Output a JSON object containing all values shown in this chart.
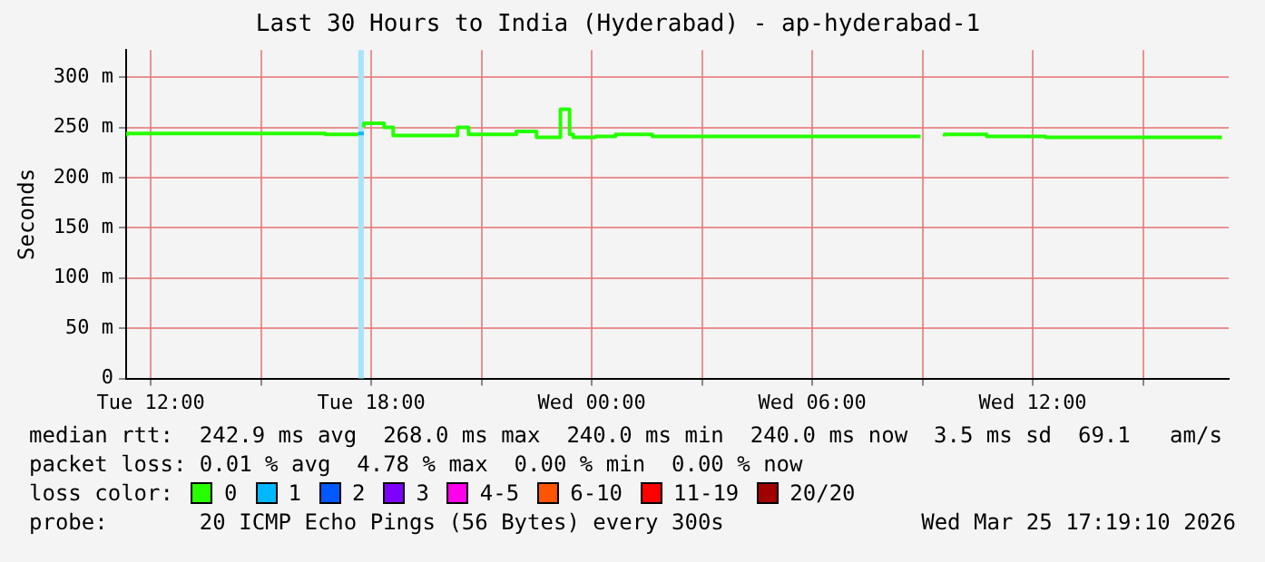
{
  "chart_data": {
    "type": "step",
    "title": "Last 30 Hours to India (Hyderabad) - ap-hyderabad-1",
    "ylabel": "Seconds",
    "xlim": [
      "2026-03-24T11:20",
      "2026-03-25T17:20"
    ],
    "xticks": [
      {
        "value": "2026-03-24T12:00",
        "label": "Tue 12:00"
      },
      {
        "value": "2026-03-24T15:00",
        "label": null
      },
      {
        "value": "2026-03-24T18:00",
        "label": "Tue 18:00"
      },
      {
        "value": "2026-03-24T21:00",
        "label": null
      },
      {
        "value": "2026-03-25T00:00",
        "label": "Wed 00:00"
      },
      {
        "value": "2026-03-25T03:00",
        "label": null
      },
      {
        "value": "2026-03-25T06:00",
        "label": "Wed 06:00"
      },
      {
        "value": "2026-03-25T09:00",
        "label": null
      },
      {
        "value": "2026-03-25T12:00",
        "label": "Wed 12:00"
      },
      {
        "value": "2026-03-25T15:00",
        "label": null
      }
    ],
    "ylim": [
      0,
      327
    ],
    "yticks": [
      0,
      {
        "value": 50,
        "label": "50 m"
      },
      {
        "value": 100,
        "label": "100 m"
      },
      {
        "value": 150,
        "label": "150 m"
      },
      {
        "value": 200,
        "label": "200 m"
      },
      {
        "value": 250,
        "label": "250 m"
      },
      {
        "value": 300,
        "label": "300 m"
      }
    ],
    "grid": true,
    "legend": "bottom",
    "legend_title": "loss color:",
    "series": [
      {
        "name": "0",
        "color": "#26ff00",
        "x": [
          "2026-03-24T11:21",
          "2026-03-24T16:45",
          "2026-03-24T17:00",
          "2026-03-24T17:39",
          "2026-03-24T17:42",
          "2026-03-24T17:48",
          "2026-03-24T18:21",
          "2026-03-24T18:36",
          "2026-03-24T20:21",
          "2026-03-24T20:39",
          "2026-03-24T21:57",
          "2026-03-24T22:30",
          "2026-03-24T23:09",
          "2026-03-24T23:24",
          "2026-03-24T23:30",
          "2026-03-25T00:06",
          "2026-03-25T00:39",
          "2026-03-25T01:39",
          "2026-03-25T03:15",
          "2026-03-25T08:57",
          "2026-03-25T09:00",
          "2026-03-25T09:36",
          "2026-03-25T10:45",
          "2026-03-25T12:21",
          "2026-03-25T14:18",
          "2026-03-25T17:09"
        ],
        "values": [
          241,
          244,
          243,
          243,
          null,
          250,
          254,
          250,
          242,
          250,
          243,
          246,
          240,
          268,
          243,
          240,
          241,
          243,
          241,
          241,
          null,
          241,
          243,
          241,
          240,
          240
        ]
      },
      {
        "name": "1",
        "color": "#00b8ff",
        "x": [
          "2026-03-24T17:39",
          "2026-03-24T17:48"
        ],
        "values": [
          244,
          244
        ]
      },
      {
        "name": "2",
        "color": "#0059ff"
      },
      {
        "name": "3",
        "color": "#7e00ff"
      },
      {
        "name": "4-5",
        "color": "#ff00ea"
      },
      {
        "name": "6-10",
        "color": "#ff5500"
      },
      {
        "name": "11-19",
        "color": "#ff0000"
      },
      {
        "name": "20/20",
        "color": "#a10000"
      }
    ],
    "bands": [
      {
        "axis": "x",
        "from": "2026-03-24T17:39",
        "to": "2026-03-24T17:48",
        "color": "#a8e4f8"
      }
    ],
    "annotations": [
      "median rtt:  242.9 ms avg  268.0 ms max  240.0 ms min  240.0 ms now  3.5 ms sd  69.1   am/s",
      "packet loss: 0.01 % avg  4.78 % max  0.00 % min  0.00 % now",
      "probe:       20 ICMP Echo Pings (56 Bytes) every 300s",
      "Wed Mar 25 17:19:10 2026"
    ]
  }
}
